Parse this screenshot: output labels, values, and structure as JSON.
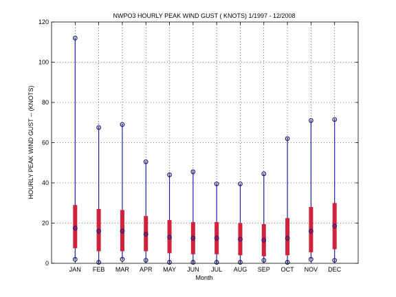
{
  "chart_data": {
    "type": "box",
    "title": "NWPO3  HOURLY PEAK WIND GUST ( KNOTS) 1/1997 - 12/2008",
    "xlabel": "Month",
    "ylabel": "HOURLY PEAK WIND GUST -- (KNOTS)",
    "ylim": [
      0,
      120
    ],
    "yticks": [
      0,
      20,
      40,
      60,
      80,
      100,
      120
    ],
    "grid": true,
    "categories": [
      "JAN",
      "FEB",
      "MAR",
      "APR",
      "MAY",
      "JUN",
      "JUL",
      "AUG",
      "SEP",
      "OCT",
      "NOV",
      "DEC"
    ],
    "min": [
      2,
      0.5,
      2,
      1.5,
      0.5,
      0.5,
      0.5,
      0.5,
      1.5,
      0.5,
      2,
      1.5
    ],
    "q1": [
      7.5,
      6,
      6,
      6,
      5,
      4.5,
      4.5,
      4,
      3.5,
      4,
      5.5,
      7
    ],
    "median": [
      17.5,
      16,
      16,
      14.5,
      13,
      12.5,
      12.5,
      12,
      11.5,
      12.5,
      16,
      18.5
    ],
    "q3": [
      29,
      27,
      26.5,
      23.5,
      21.5,
      20.5,
      20.5,
      20,
      19.5,
      22.5,
      28,
      30
    ],
    "max": [
      112,
      67.5,
      69,
      50.5,
      44,
      45.5,
      39.5,
      39.5,
      44.5,
      62,
      71,
      71.5
    ]
  }
}
